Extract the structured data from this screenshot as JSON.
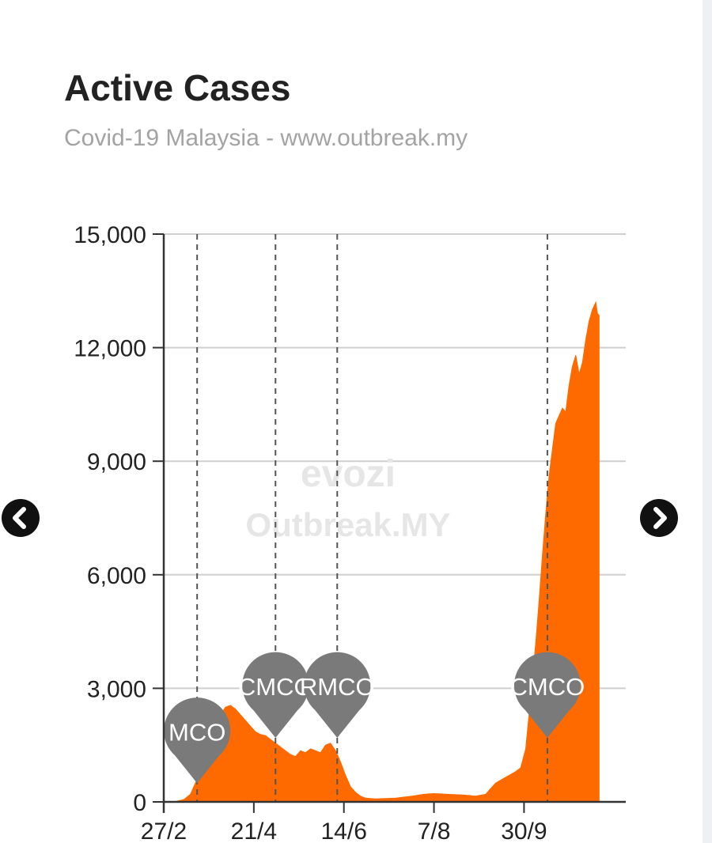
{
  "header": {
    "title": "Active Cases",
    "subtitle": "Covid-19 Malaysia - www.outbreak.my"
  },
  "watermark": {
    "brand": "evozi",
    "site": "Outbreak.MY"
  },
  "navigation": {
    "prev_icon": "chevron-left-icon",
    "next_icon": "chevron-right-icon"
  },
  "colors": {
    "area": "#ff6a00",
    "marker": "#7a7a7a",
    "grid": "#cfcfcf",
    "axis": "#333333"
  },
  "chart_data": {
    "type": "area",
    "title": "Active Cases",
    "subtitle": "Covid-19 Malaysia - www.outbreak.my",
    "xlabel": "",
    "ylabel": "",
    "ylim": [
      0,
      15000
    ],
    "yticks": [
      0,
      3000,
      6000,
      9000,
      12000,
      15000
    ],
    "ytick_labels": [
      "0",
      "3,000",
      "6,000",
      "9,000",
      "12,000",
      "15,000"
    ],
    "xrange": [
      "2020-02-27",
      "2020-11-30"
    ],
    "xticks": [
      {
        "date": "2020-02-27",
        "label": "27/2"
      },
      {
        "date": "2020-04-21",
        "label": "21/4"
      },
      {
        "date": "2020-06-14",
        "label": "14/6"
      },
      {
        "date": "2020-08-07",
        "label": "7/8"
      },
      {
        "date": "2020-09-30",
        "label": "30/9"
      }
    ],
    "grid": true,
    "legend": "none",
    "annotations": [
      {
        "date": "2020-03-18",
        "label": "MCO",
        "height": 3000
      },
      {
        "date": "2020-05-04",
        "label": "CMCO",
        "height": 4200
      },
      {
        "date": "2020-06-10",
        "label": "RMCO",
        "height": 4200
      },
      {
        "date": "2020-10-14",
        "label": "CMCO",
        "height": 4200
      }
    ],
    "series": [
      {
        "points": [
          [
            "2020-02-27",
            0
          ],
          [
            "2020-03-05",
            10
          ],
          [
            "2020-03-10",
            60
          ],
          [
            "2020-03-14",
            200
          ],
          [
            "2020-03-17",
            500
          ],
          [
            "2020-03-20",
            900
          ],
          [
            "2020-03-23",
            1300
          ],
          [
            "2020-03-26",
            1700
          ],
          [
            "2020-03-29",
            2050
          ],
          [
            "2020-04-01",
            2300
          ],
          [
            "2020-04-04",
            2500
          ],
          [
            "2020-04-07",
            2550
          ],
          [
            "2020-04-10",
            2450
          ],
          [
            "2020-04-13",
            2300
          ],
          [
            "2020-04-16",
            2150
          ],
          [
            "2020-04-19",
            2000
          ],
          [
            "2020-04-22",
            1850
          ],
          [
            "2020-04-25",
            1780
          ],
          [
            "2020-04-28",
            1750
          ],
          [
            "2020-05-01",
            1650
          ],
          [
            "2020-05-04",
            1550
          ],
          [
            "2020-05-07",
            1450
          ],
          [
            "2020-05-10",
            1350
          ],
          [
            "2020-05-13",
            1250
          ],
          [
            "2020-05-16",
            1200
          ],
          [
            "2020-05-19",
            1350
          ],
          [
            "2020-05-22",
            1300
          ],
          [
            "2020-05-25",
            1400
          ],
          [
            "2020-05-28",
            1350
          ],
          [
            "2020-05-31",
            1300
          ],
          [
            "2020-06-03",
            1500
          ],
          [
            "2020-06-06",
            1550
          ],
          [
            "2020-06-09",
            1350
          ],
          [
            "2020-06-12",
            1050
          ],
          [
            "2020-06-15",
            700
          ],
          [
            "2020-06-18",
            400
          ],
          [
            "2020-06-21",
            250
          ],
          [
            "2020-06-24",
            150
          ],
          [
            "2020-06-27",
            100
          ],
          [
            "2020-07-03",
            80
          ],
          [
            "2020-07-15",
            100
          ],
          [
            "2020-07-25",
            150
          ],
          [
            "2020-08-01",
            200
          ],
          [
            "2020-08-07",
            220
          ],
          [
            "2020-08-15",
            200
          ],
          [
            "2020-08-25",
            180
          ],
          [
            "2020-09-01",
            150
          ],
          [
            "2020-09-07",
            200
          ],
          [
            "2020-09-10",
            350
          ],
          [
            "2020-09-13",
            500
          ],
          [
            "2020-09-17",
            600
          ],
          [
            "2020-09-21",
            700
          ],
          [
            "2020-09-25",
            800
          ],
          [
            "2020-09-28",
            900
          ],
          [
            "2020-10-01",
            1400
          ],
          [
            "2020-10-03",
            2300
          ],
          [
            "2020-10-05",
            3200
          ],
          [
            "2020-10-07",
            4200
          ],
          [
            "2020-10-09",
            5300
          ],
          [
            "2020-10-11",
            6500
          ],
          [
            "2020-10-13",
            7600
          ],
          [
            "2020-10-15",
            8600
          ],
          [
            "2020-10-17",
            9300
          ],
          [
            "2020-10-19",
            10000
          ],
          [
            "2020-10-21",
            10200
          ],
          [
            "2020-10-23",
            10400
          ],
          [
            "2020-10-25",
            10300
          ],
          [
            "2020-10-27",
            11000
          ],
          [
            "2020-10-29",
            11500
          ],
          [
            "2020-10-31",
            11800
          ],
          [
            "2020-11-02",
            11300
          ],
          [
            "2020-11-04",
            11600
          ],
          [
            "2020-11-06",
            12200
          ],
          [
            "2020-11-08",
            12700
          ],
          [
            "2020-11-10",
            13000
          ],
          [
            "2020-11-12",
            13200
          ],
          [
            "2020-11-13",
            12900
          ],
          [
            "2020-11-14",
            12850
          ]
        ]
      }
    ]
  }
}
